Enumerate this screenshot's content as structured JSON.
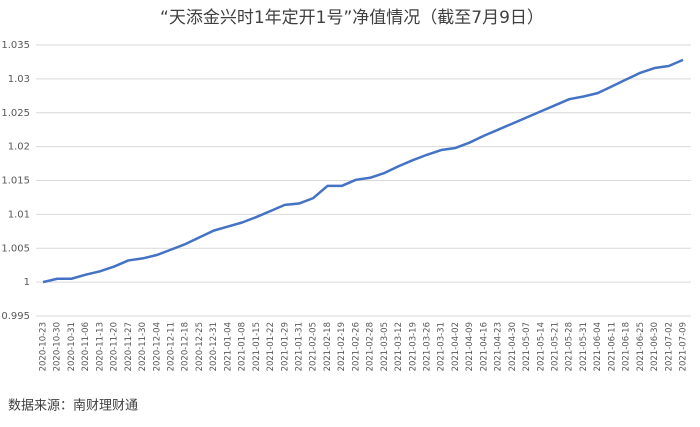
{
  "chart_data": {
    "type": "line",
    "title": "“天添金兴时1年定开1号”净值情况（截至7月9日）",
    "source": "数据来源：南财理财通",
    "categories": [
      "2020-10-23",
      "2020-10-30",
      "2020-10-31",
      "2020-11-06",
      "2020-11-13",
      "2020-11-20",
      "2020-11-27",
      "2020-11-30",
      "2020-12-04",
      "2020-12-11",
      "2020-12-18",
      "2020-12-25",
      "2020-12-31",
      "2021-01-04",
      "2021-01-08",
      "2021-01-15",
      "2021-01-22",
      "2021-01-29",
      "2021-01-31",
      "2021-02-05",
      "2021-02-18",
      "2021-02-19",
      "2021-02-26",
      "2021-02-28",
      "2021-03-05",
      "2021-03-12",
      "2021-03-19",
      "2021-03-26",
      "2021-03-31",
      "2021-04-02",
      "2021-04-09",
      "2021-04-16",
      "2021-04-23",
      "2021-04-30",
      "2021-05-07",
      "2021-05-14",
      "2021-05-21",
      "2021-05-28",
      "2021-05-31",
      "2021-06-04",
      "2021-06-11",
      "2021-06-18",
      "2021-06-25",
      "2021-06-30",
      "2021-07-02",
      "2021-07-09"
    ],
    "values": [
      1.0,
      1.0005,
      1.0005,
      1.0011,
      1.0016,
      1.0023,
      1.0032,
      1.0035,
      1.004,
      1.0048,
      1.0056,
      1.0066,
      1.0076,
      1.0082,
      1.0088,
      1.0096,
      1.0105,
      1.0114,
      1.0116,
      1.0124,
      1.0142,
      1.0142,
      1.0151,
      1.0154,
      1.0161,
      1.0171,
      1.018,
      1.0188,
      1.0195,
      1.0198,
      1.0206,
      1.0216,
      1.0225,
      1.0234,
      1.0243,
      1.0252,
      1.0261,
      1.027,
      1.0274,
      1.0279,
      1.0289,
      1.0299,
      1.0309,
      1.0316,
      1.0319,
      1.0328
    ],
    "color": "#4472c4",
    "ylim": [
      0.995,
      1.035
    ],
    "yticks": [
      0.995,
      1,
      1.005,
      1.01,
      1.015,
      1.02,
      1.025,
      1.03,
      1.035
    ],
    "grid": true
  }
}
